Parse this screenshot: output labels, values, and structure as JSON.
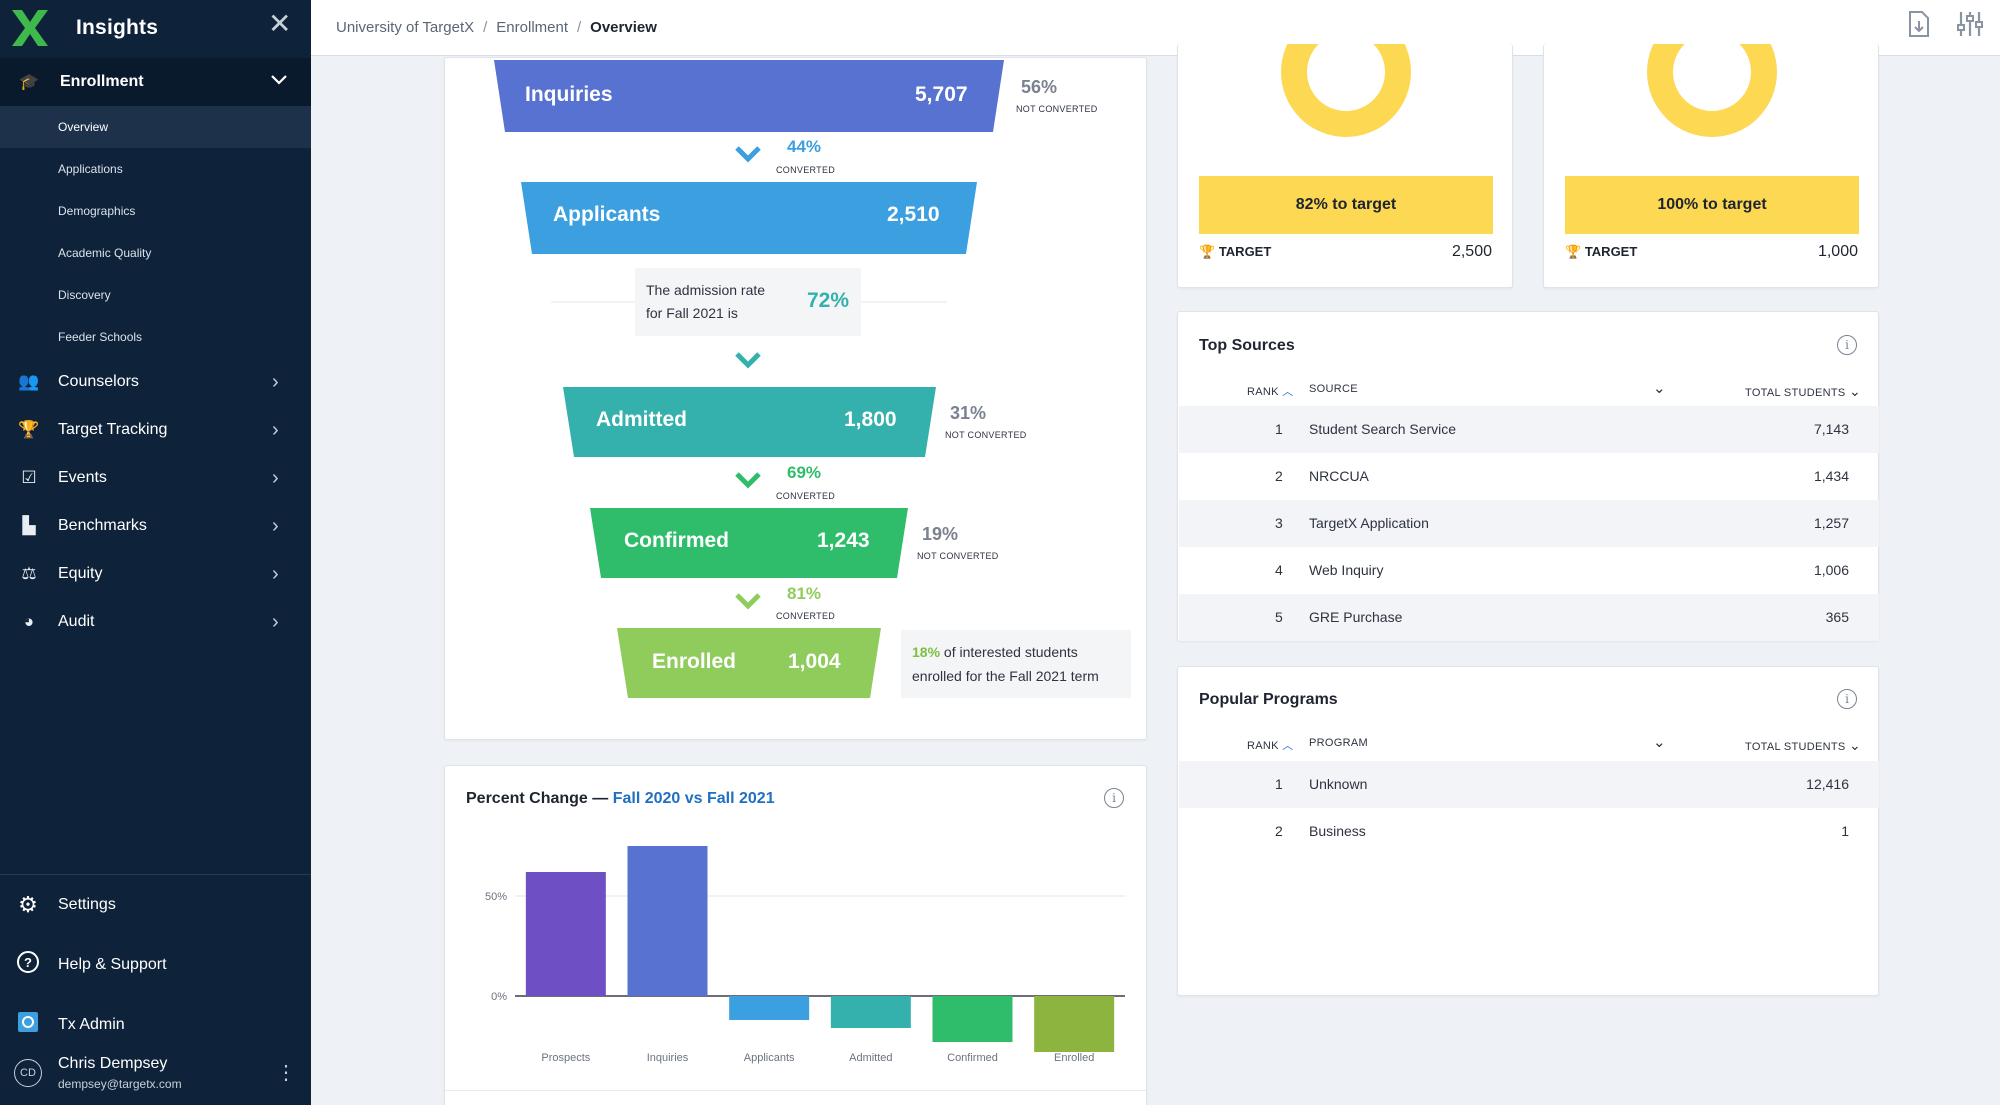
{
  "sidebar": {
    "app_title": "Insights",
    "section": "Enrollment",
    "subitems": [
      "Overview",
      "Applications",
      "Demographics",
      "Academic Quality",
      "Discovery",
      "Feeder Schools"
    ],
    "items": [
      "Counselors",
      "Target Tracking",
      "Events",
      "Benchmarks",
      "Equity",
      "Audit"
    ],
    "bottom": [
      "Settings",
      "Help & Support",
      "Tx Admin"
    ],
    "user": {
      "initials": "CD",
      "name": "Chris Dempsey",
      "email": "dempsey@targetx.com"
    }
  },
  "breadcrumb": [
    "University of TargetX",
    "Enrollment",
    "Overview"
  ],
  "funnel": {
    "stages": [
      {
        "label": "Inquiries",
        "value": "5,707",
        "color": "#5772d1"
      },
      {
        "label": "Applicants",
        "value": "2,510",
        "color": "#3b9fe0"
      },
      {
        "label": "Admitted",
        "value": "1,800",
        "color": "#34b1ad"
      },
      {
        "label": "Confirmed",
        "value": "1,243",
        "color": "#2fbd6b"
      },
      {
        "label": "Enrolled",
        "value": "1,004",
        "color": "#8fcc5c"
      }
    ],
    "conversions": [
      {
        "pct": "44%",
        "label": "CONVERTED"
      },
      {
        "pct": "69%",
        "label": "CONVERTED"
      },
      {
        "pct": "81%",
        "label": "CONVERTED"
      }
    ],
    "not_converted": [
      {
        "pct": "56%",
        "label": "NOT CONVERTED"
      },
      {
        "pct": "31%",
        "label": "NOT CONVERTED"
      },
      {
        "pct": "19%",
        "label": "NOT CONVERTED"
      }
    ],
    "admission_note_line1": "The admission rate",
    "admission_note_line2": "for Fall 2021 is",
    "admission_rate": "72%",
    "enrolled_note_pct": "18%",
    "enrolled_note_text1": " of interested students",
    "enrolled_note_text2": "enrolled for the Fall 2021 term"
  },
  "targets": [
    {
      "label": "82% to target",
      "target_label": "TARGET",
      "target_value": "2,500",
      "progress": 0.82
    },
    {
      "label": "100% to target",
      "target_label": "TARGET",
      "target_value": "1,000",
      "progress": 1.0
    }
  ],
  "top_sources": {
    "title": "Top Sources",
    "headers": {
      "rank": "RANK",
      "col": "SOURCE",
      "total": "TOTAL STUDENTS"
    },
    "rows": [
      {
        "rank": "1",
        "name": "Student Search Service",
        "total": "7,143"
      },
      {
        "rank": "2",
        "name": "NRCCUA",
        "total": "1,434"
      },
      {
        "rank": "3",
        "name": "TargetX Application",
        "total": "1,257"
      },
      {
        "rank": "4",
        "name": "Web Inquiry",
        "total": "1,006"
      },
      {
        "rank": "5",
        "name": "GRE Purchase",
        "total": "365"
      }
    ]
  },
  "popular_programs": {
    "title": "Popular Programs",
    "headers": {
      "rank": "RANK",
      "col": "PROGRAM",
      "total": "TOTAL STUDENTS"
    },
    "rows": [
      {
        "rank": "1",
        "name": "Unknown",
        "total": "12,416"
      },
      {
        "rank": "2",
        "name": "Business",
        "total": "1"
      }
    ]
  },
  "percent_change": {
    "title_prefix": "Percent Change — ",
    "title_highlight": "Fall 2020 vs Fall 2021"
  },
  "chart_data": {
    "type": "bar",
    "categories": [
      "Prospects",
      "Inquiries",
      "Applicants",
      "Admitted",
      "Confirmed",
      "Enrolled"
    ],
    "values": [
      62,
      75,
      -12,
      -16,
      -23,
      -28
    ],
    "colors": [
      "#6e4fc4",
      "#5772d1",
      "#3b9fe0",
      "#34b1ad",
      "#2fbd6b",
      "#8cb43f"
    ],
    "yticks": [
      "0%",
      "50%"
    ],
    "ylim": [
      -35,
      85
    ],
    "grid": true
  }
}
